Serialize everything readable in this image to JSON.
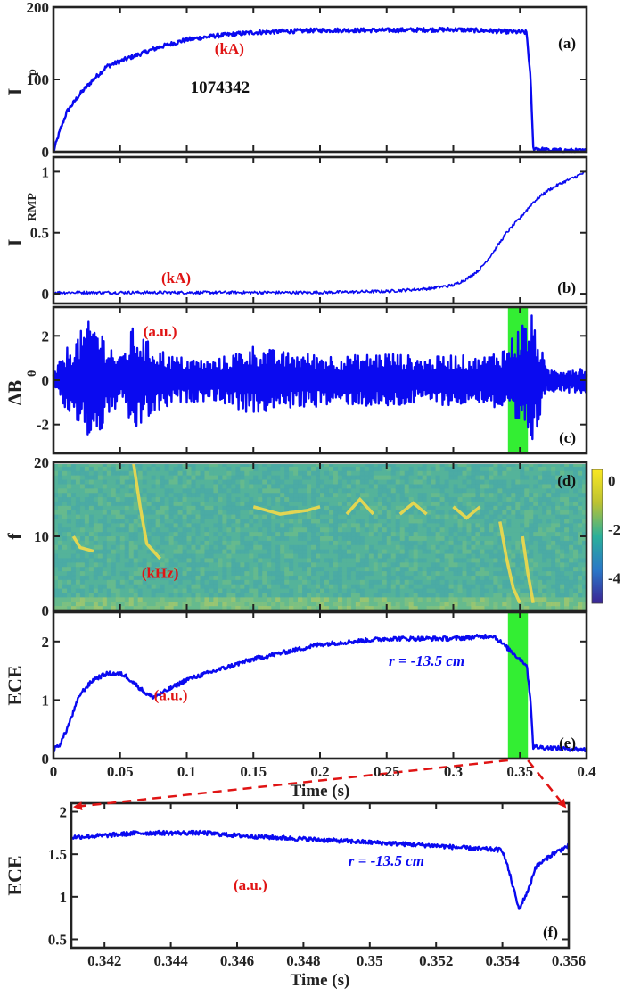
{
  "colors": {
    "trace": "#0a0af0",
    "unit_text": "#e01414",
    "highlight": "#33ee33",
    "axis": "#222222",
    "zoom_arrow": "#e01414"
  },
  "chart_data": [
    {
      "panel": "(a)",
      "type": "line",
      "ylabel_main": "I",
      "ylabel_sub": "p",
      "unit": "(kA)",
      "annotation": "1074342",
      "xlim": [
        0,
        0.4
      ],
      "ylim": [
        0,
        200
      ],
      "yticks": [
        "0",
        "100",
        "200"
      ],
      "series": [
        {
          "x": [
            0,
            0.005,
            0.01,
            0.02,
            0.03,
            0.04,
            0.05,
            0.06,
            0.08,
            0.1,
            0.12,
            0.15,
            0.2,
            0.25,
            0.3,
            0.33,
            0.355,
            0.358,
            0.36,
            0.37,
            0.4
          ],
          "y": [
            0,
            30,
            55,
            80,
            100,
            118,
            125,
            132,
            145,
            155,
            160,
            165,
            168,
            168,
            169,
            167,
            165,
            100,
            5,
            2,
            1
          ]
        }
      ]
    },
    {
      "panel": "(b)",
      "type": "line",
      "ylabel_main": "I",
      "ylabel_sub": "RMP",
      "unit": "(kA)",
      "xlim": [
        0,
        0.4
      ],
      "ylim": [
        -0.08,
        1.12
      ],
      "yticks": [
        "0",
        "0.5",
        "1"
      ],
      "series": [
        {
          "x": [
            0,
            0.05,
            0.1,
            0.15,
            0.2,
            0.25,
            0.28,
            0.3,
            0.31,
            0.32,
            0.33,
            0.34,
            0.35,
            0.36,
            0.37,
            0.38,
            0.39,
            0.4
          ],
          "y": [
            0.01,
            0.01,
            0.01,
            0.01,
            0.01,
            0.02,
            0.04,
            0.07,
            0.12,
            0.2,
            0.34,
            0.5,
            0.62,
            0.75,
            0.84,
            0.9,
            0.95,
            1.0
          ]
        }
      ]
    },
    {
      "panel": "(c)",
      "type": "line",
      "ylabel_main": "ΔB",
      "ylabel_sub": "θ",
      "unit": "(a.u.)",
      "xlim": [
        0,
        0.4
      ],
      "ylim": [
        -3.3,
        3.3
      ],
      "yticks": [
        "-2",
        "0",
        "2"
      ],
      "highlight": [
        0.341,
        0.356
      ],
      "series": [
        {
          "x": [
            0,
            0.01,
            0.02,
            0.03,
            0.05,
            0.06,
            0.07,
            0.09,
            0.12,
            0.15,
            0.17,
            0.2,
            0.22,
            0.25,
            0.28,
            0.3,
            0.32,
            0.34,
            0.35,
            0.36,
            0.37,
            0.4
          ],
          "y": [
            0.3,
            1.5,
            2.2,
            2.9,
            1.0,
            2.5,
            1.8,
            1.1,
            0.9,
            1.6,
            1.3,
            1.2,
            1.1,
            1.3,
            1.0,
            1.2,
            1.0,
            1.6,
            2.6,
            3.0,
            0.5,
            0.6
          ]
        }
      ]
    },
    {
      "panel": "(d)",
      "type": "heatmap",
      "ylabel_main": "f",
      "unit": "(kHz)",
      "xlim": [
        0,
        0.4
      ],
      "ylim": [
        0,
        20
      ],
      "yticks": [
        "0",
        "10",
        "20"
      ],
      "colorbar": {
        "ticks": [
          "0",
          "-2",
          "-4"
        ],
        "range": [
          -5,
          0.5
        ]
      }
    },
    {
      "panel": "(e)",
      "type": "line",
      "ylabel_main": "ECE",
      "unit": "(a.u.)",
      "annotation": "r = -13.5 cm",
      "xlim": [
        0,
        0.4
      ],
      "ylim": [
        0,
        2.5
      ],
      "yticks": [
        "0",
        "1",
        "2"
      ],
      "xticks": [
        "0",
        "0.05",
        "0.1",
        "0.15",
        "0.2",
        "0.25",
        "0.3",
        "0.35",
        "0.4"
      ],
      "xlabel": "Time (s)",
      "highlight": [
        0.341,
        0.356
      ],
      "series": [
        {
          "x": [
            0,
            0.005,
            0.01,
            0.015,
            0.02,
            0.03,
            0.04,
            0.05,
            0.055,
            0.06,
            0.07,
            0.075,
            0.08,
            0.1,
            0.15,
            0.2,
            0.25,
            0.3,
            0.33,
            0.34,
            0.35,
            0.355,
            0.358,
            0.36,
            0.4
          ],
          "y": [
            0.15,
            0.25,
            0.5,
            0.8,
            1.1,
            1.35,
            1.45,
            1.45,
            1.4,
            1.3,
            1.1,
            1.05,
            1.1,
            1.35,
            1.7,
            1.95,
            2.05,
            2.05,
            2.1,
            1.9,
            1.7,
            1.6,
            1.0,
            0.2,
            0.15
          ]
        }
      ]
    },
    {
      "panel": "(f)",
      "type": "line",
      "ylabel_main": "ECE",
      "unit": "(a.u.)",
      "annotation": "r = -13.5 cm",
      "xlim": [
        0.341,
        0.356
      ],
      "ylim": [
        0.4,
        2.1
      ],
      "yticks": [
        "0.5",
        "1",
        "1.5",
        "2"
      ],
      "xticks": [
        "0.342",
        "0.344",
        "0.346",
        "0.348",
        "0.35",
        "0.352",
        "0.354",
        "0.356"
      ],
      "xlabel": "Time (s)",
      "series": [
        {
          "x": [
            0.341,
            0.342,
            0.343,
            0.344,
            0.345,
            0.346,
            0.347,
            0.348,
            0.349,
            0.35,
            0.351,
            0.352,
            0.353,
            0.354,
            0.3542,
            0.3545,
            0.3548,
            0.355,
            0.3555,
            0.356
          ],
          "y": [
            1.7,
            1.72,
            1.75,
            1.75,
            1.75,
            1.72,
            1.7,
            1.68,
            1.66,
            1.64,
            1.62,
            1.6,
            1.57,
            1.55,
            1.3,
            0.85,
            1.1,
            1.35,
            1.5,
            1.6
          ]
        }
      ]
    }
  ]
}
